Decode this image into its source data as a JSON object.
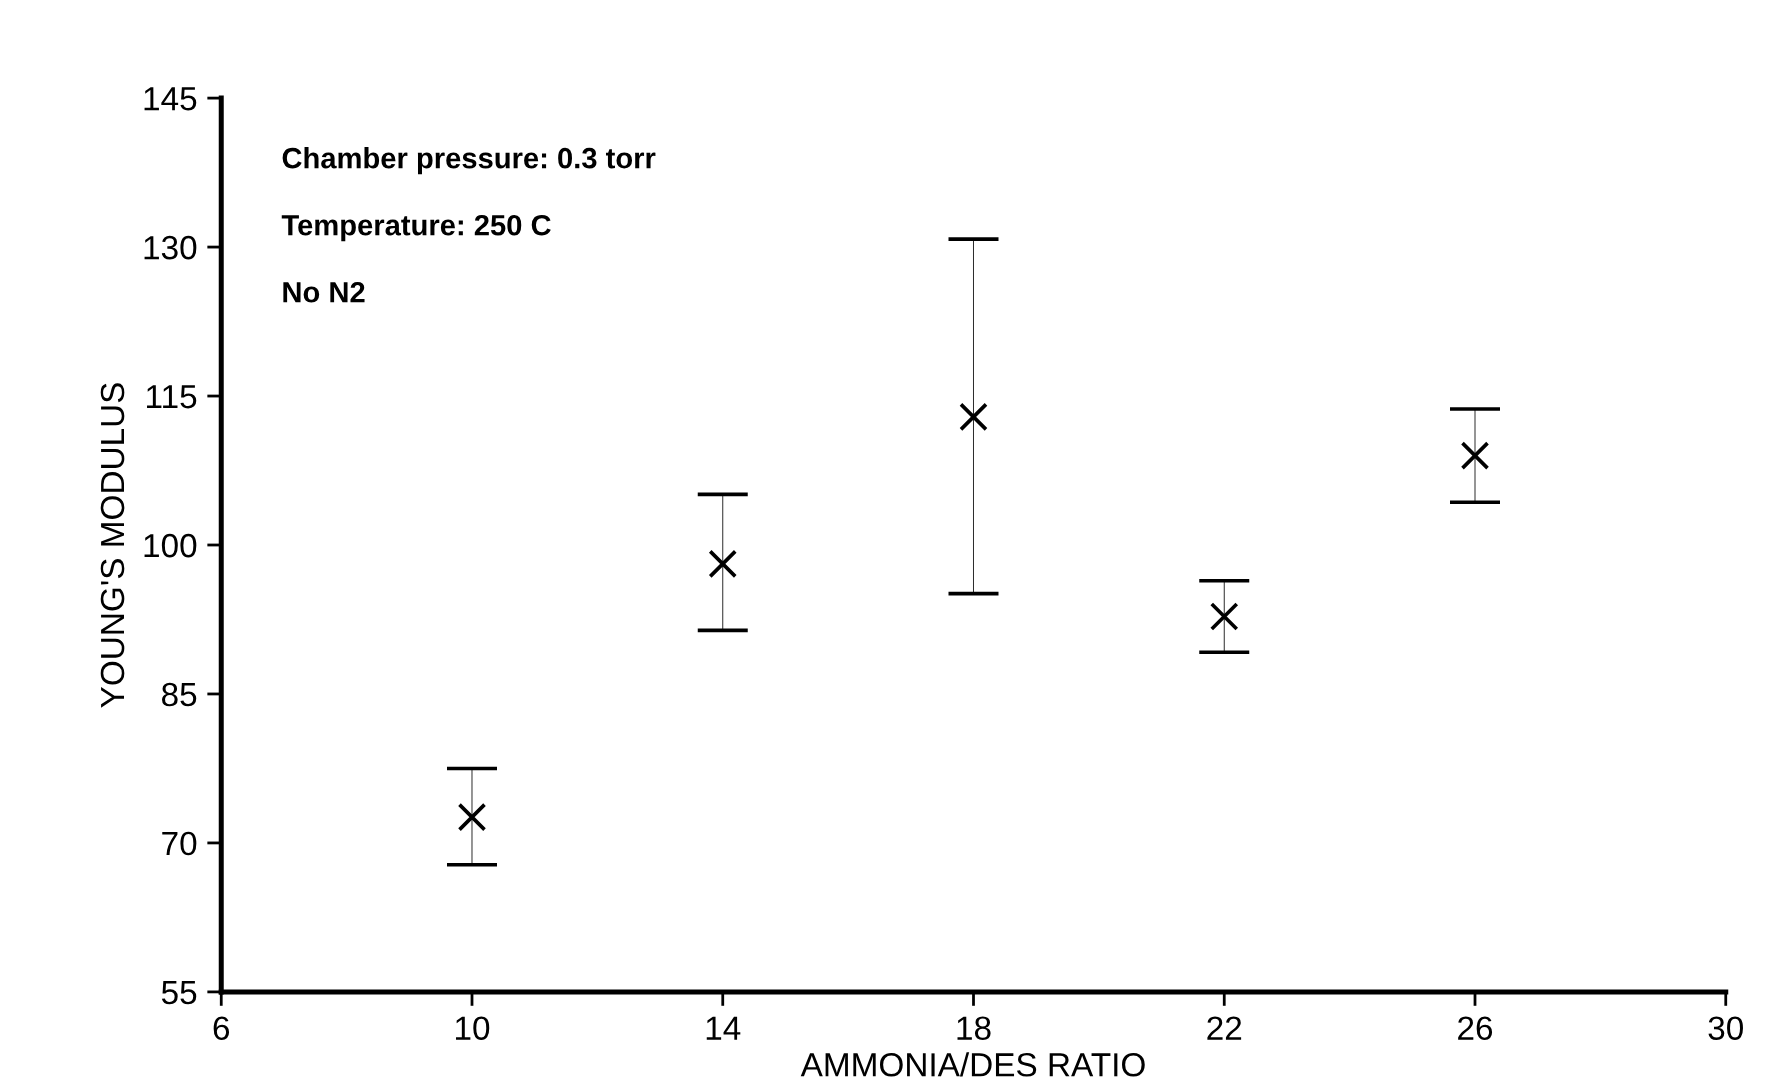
{
  "chart_data": {
    "type": "scatter",
    "xlabel": "AMMONIA/DES RATIO",
    "ylabel": "YOUNG'S MODULUS",
    "x": [
      10,
      14,
      18,
      22,
      26
    ],
    "values": [
      72.6,
      98.1,
      112.9,
      92.8,
      109.0
    ],
    "errors": [
      [
        67.8,
        77.5
      ],
      [
        91.4,
        105.1
      ],
      [
        95.1,
        130.8
      ],
      [
        89.2,
        96.4
      ],
      [
        104.3,
        113.7
      ]
    ],
    "color": "#000000",
    "marker": "cross",
    "xlim": [
      6,
      30
    ],
    "xticks": [
      6,
      10,
      14,
      18,
      22,
      26,
      30
    ],
    "ylim": [
      55,
      145
    ],
    "yticks": [
      55,
      70,
      85,
      100,
      115,
      130,
      145
    ],
    "annotations": [
      "Chamber pressure: 0.3 torr",
      "Temperature: 250 C",
      "No N2"
    ]
  }
}
